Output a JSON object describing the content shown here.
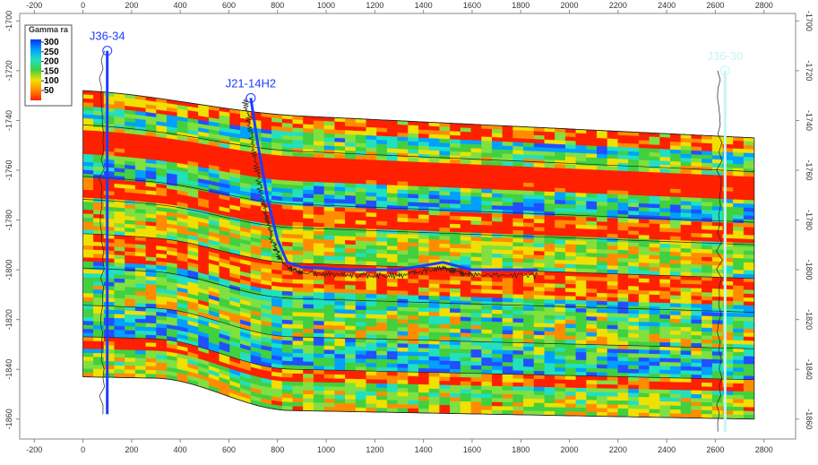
{
  "chart_data": {
    "type": "well-section",
    "xlim": [
      -260,
      2930
    ],
    "ylim": [
      -1697,
      -1868
    ],
    "xticks": [
      -200,
      0,
      200,
      400,
      600,
      800,
      1000,
      1200,
      1400,
      1600,
      1800,
      2000,
      2200,
      2400,
      2600,
      2800
    ],
    "yticks": [
      -1700,
      -1720,
      -1740,
      -1760,
      -1780,
      -1800,
      -1820,
      -1840,
      -1860
    ],
    "colorbar": {
      "title": "Gamma ra",
      "ticks": [
        300,
        250,
        200,
        150,
        100,
        50
      ],
      "colors": [
        "#0030ff",
        "#00a0ff",
        "#20e0c0",
        "#40d040",
        "#f0e000",
        "#ff8c00",
        "#ff2000"
      ]
    },
    "wells": [
      {
        "name": "J36-34",
        "color": "#1e3cff",
        "x": [
          100,
          100
        ],
        "y": [
          -1712,
          -1858
        ]
      },
      {
        "name": "J21-14H2",
        "color": "#1e3cff",
        "x": [
          690,
          720,
          760,
          800,
          840,
          900,
          1100,
          1300,
          1480,
          1600,
          1870
        ],
        "y": [
          -1731,
          -1750,
          -1772,
          -1788,
          -1797,
          -1799,
          -1800,
          -1800,
          -1797,
          -1800,
          -1800
        ]
      },
      {
        "name": "J36-30",
        "color": "#c8f4f4",
        "x": [
          2640,
          2640
        ],
        "y": [
          -1720,
          -1865
        ]
      }
    ]
  }
}
